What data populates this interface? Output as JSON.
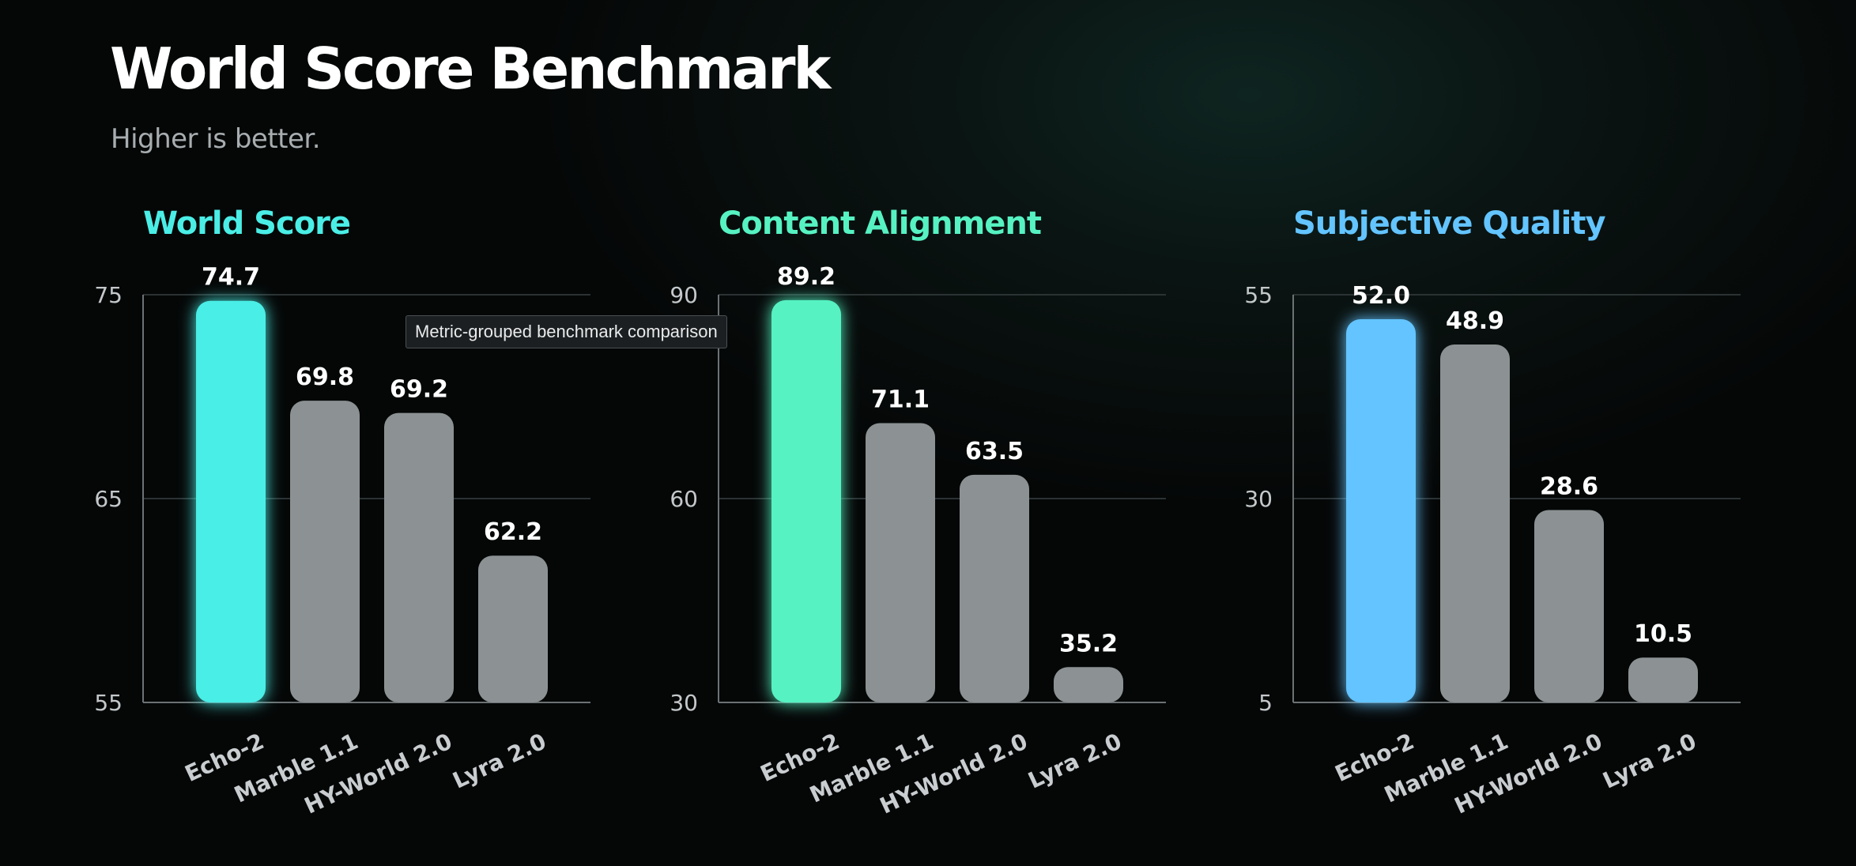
{
  "header": {
    "title": "World Score Benchmark",
    "subtitle": "Higher is better."
  },
  "tooltip": {
    "text": "Metric-grouped benchmark comparison"
  },
  "colors": {
    "highlight_world_score": "#4aeee6",
    "highlight_content_alignment": "#56f2c2",
    "highlight_subjective_quality": "#63c4ff",
    "other_bars": "#8c9293",
    "grid": "#2b3233",
    "axis": "#6c7274"
  },
  "chart_data": [
    {
      "type": "bar",
      "title": "World Score",
      "categories": [
        "Echo-2",
        "Marble 1.1",
        "HY-World 2.0",
        "Lyra 2.0"
      ],
      "values": [
        74.7,
        69.8,
        69.2,
        62.2
      ],
      "value_labels": [
        "74.7",
        "69.8",
        "69.2",
        "62.2"
      ],
      "ylim": [
        55,
        75
      ],
      "yticks": [
        55,
        65,
        75
      ],
      "ytick_labels": [
        "55",
        "65",
        "75"
      ],
      "highlight_index": 0,
      "highlight_color": "#4aeee6",
      "xlabel": "",
      "ylabel": "",
      "grid": true
    },
    {
      "type": "bar",
      "title": "Content Alignment",
      "categories": [
        "Echo-2",
        "Marble 1.1",
        "HY-World 2.0",
        "Lyra 2.0"
      ],
      "values": [
        89.2,
        71.1,
        63.5,
        35.2
      ],
      "value_labels": [
        "89.2",
        "71.1",
        "63.5",
        "35.2"
      ],
      "ylim": [
        30,
        90
      ],
      "yticks": [
        30,
        60,
        90
      ],
      "ytick_labels": [
        "30",
        "60",
        "90"
      ],
      "highlight_index": 0,
      "highlight_color": "#56f2c2",
      "xlabel": "",
      "ylabel": "",
      "grid": true
    },
    {
      "type": "bar",
      "title": "Subjective Quality",
      "categories": [
        "Echo-2",
        "Marble 1.1",
        "HY-World 2.0",
        "Lyra 2.0"
      ],
      "values": [
        52.0,
        48.9,
        28.6,
        10.5
      ],
      "value_labels": [
        "52.0",
        "48.9",
        "28.6",
        "10.5"
      ],
      "ylim": [
        5,
        55
      ],
      "yticks": [
        5,
        30,
        55
      ],
      "ytick_labels": [
        "5",
        "30",
        "55"
      ],
      "highlight_index": 0,
      "highlight_color": "#63c4ff",
      "xlabel": "",
      "ylabel": "",
      "grid": true
    }
  ]
}
